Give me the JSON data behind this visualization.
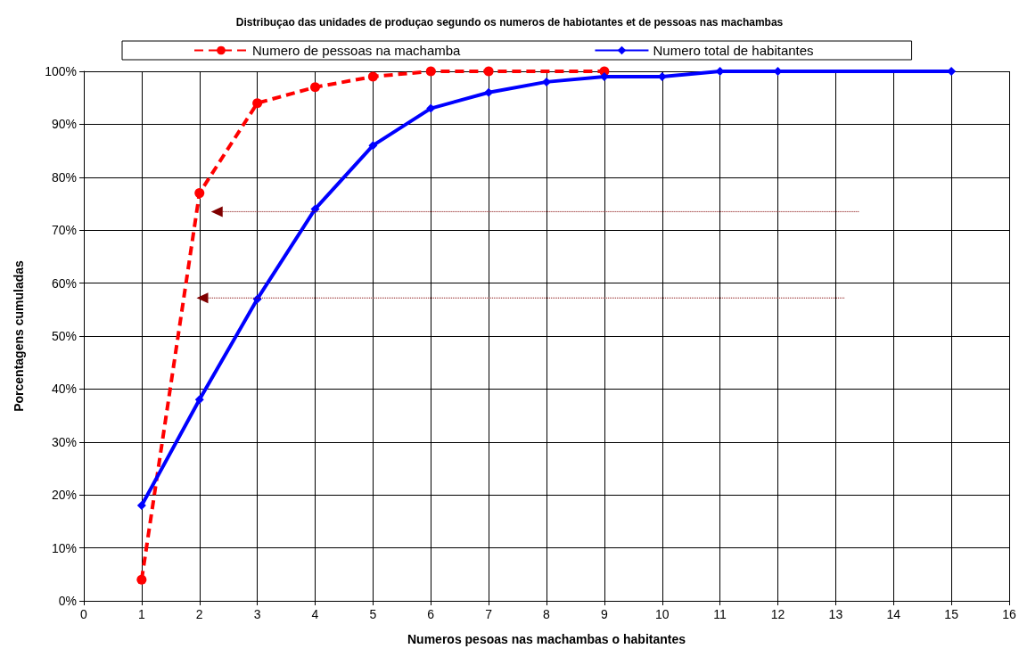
{
  "chart_data": {
    "type": "line",
    "title": "Distribuçao das unidades de produçao segundo os numeros de habiotantes et de pessoas nas machambas",
    "xlabel": "Numeros pesoas nas machambas o habitantes",
    "ylabel": "Porcentagens cumuladas",
    "series": [
      {
        "name": "Numero de pessoas na machamba",
        "color": "#ff0000",
        "x": [
          1,
          2,
          3,
          4,
          5,
          6,
          7,
          9
        ],
        "values": [
          4,
          77,
          94,
          97,
          99,
          100,
          100,
          100
        ],
        "marker": "circle",
        "line_style": "dashed"
      },
      {
        "name": "Numero total de habitantes",
        "color": "#0000ff",
        "x": [
          1,
          2,
          3,
          4,
          5,
          6,
          7,
          8,
          9,
          10,
          11,
          12,
          15
        ],
        "values": [
          18,
          38,
          57,
          74,
          86,
          93,
          96,
          98,
          99,
          99,
          100,
          100,
          100
        ],
        "marker": "diamond",
        "line_style": "solid"
      }
    ],
    "xlim": [
      0,
      16
    ],
    "xticks": [
      0,
      1,
      2,
      3,
      4,
      5,
      6,
      7,
      8,
      9,
      10,
      11,
      12,
      13,
      14,
      15,
      16
    ],
    "ylim": [
      0,
      100
    ],
    "yticks": [
      {
        "value": 0,
        "label": "0%"
      },
      {
        "value": 10,
        "label": "10%"
      },
      {
        "value": 20,
        "label": "20%"
      },
      {
        "value": 30,
        "label": "30%"
      },
      {
        "value": 40,
        "label": "40%"
      },
      {
        "value": 50,
        "label": "50%"
      },
      {
        "value": 60,
        "label": "60%"
      },
      {
        "value": 70,
        "label": "70%"
      },
      {
        "value": 80,
        "label": "80%"
      },
      {
        "value": 90,
        "label": "90%"
      },
      {
        "value": 100,
        "label": "100%"
      }
    ],
    "grid": true,
    "legend": "top"
  }
}
